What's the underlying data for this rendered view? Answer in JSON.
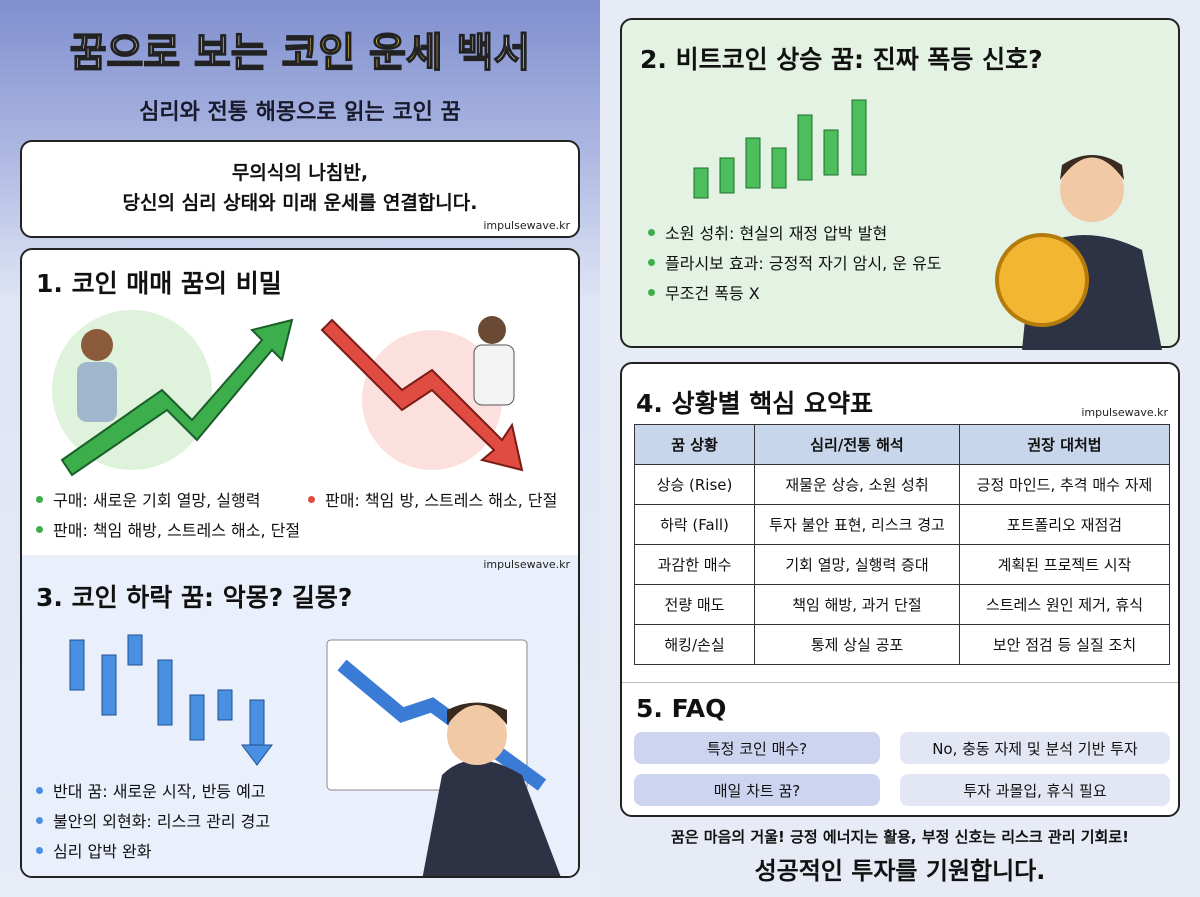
{
  "header": {
    "title_parts": [
      "꿈으로 보는",
      "코인 운세",
      "백서"
    ],
    "subtitle": "심리와 전통 해몽으로 읽는 코인 꿈"
  },
  "intro": {
    "lines": [
      "무의식의 나침반,",
      "당신의 심리 상태와 미래 운세를 연결합니다."
    ],
    "source": "impulsewave.kr"
  },
  "section1": {
    "title": "1. 코인 매매 꿈의 비밀",
    "bullets": [
      "구매: 새로운 기회 열망, 실행력",
      "판매: 책임 방, 스트레스 해소, 단절",
      "판매: 책임 해방, 스트레스 해소, 단절"
    ]
  },
  "section3": {
    "title": "3. 코인 하락 꿈: 악몽? 길몽?",
    "source": "impulsewave.kr",
    "bullets": [
      "반대 꿈: 새로운 시작, 반등 예고",
      "불안의 외현화: 리스크 관리 경고",
      "심리 압박 완화"
    ]
  },
  "section2": {
    "title": "2. 비트코인 상승 꿈: 진짜 폭등 신호?",
    "bullets": [
      "소원 성취: 현실의 재정 압박 발현",
      "플라시보 효과: 긍정적 자기 암시, 운 유도",
      "무조건 폭등 X"
    ]
  },
  "section4": {
    "title": "4. 상황별 핵심 요약표",
    "source": "impulsewave.kr",
    "table": {
      "header": [
        "꿈 상황",
        "심리/전통 해석",
        "권장 대처법"
      ],
      "rows": [
        [
          "상승 (Rise)",
          "재물운 상승, 소원 성취",
          "긍정 마인드, 추격 매수 자제"
        ],
        [
          "하락 (Fall)",
          "투자 불안 표현, 리스크 경고",
          "포트폴리오 재점검"
        ],
        [
          "과감한 매수",
          "기회 열망, 실행력 증대",
          "계획된 프로젝트 시작"
        ],
        [
          "전량 매도",
          "책임 해방, 과거 단절",
          "스트레스 원인 제거, 휴식"
        ],
        [
          "해킹/손실",
          "통제 상실 공포",
          "보안 점검 등 실질 조치"
        ]
      ]
    }
  },
  "section5": {
    "title": "5. FAQ",
    "faqs": [
      [
        "특정 코인 매수?",
        "No, 충동 자제 및 분석 기반 투자"
      ],
      [
        "매일 차트 꿈?",
        "투자 과몰입, 휴식 필요"
      ]
    ]
  },
  "footer": {
    "line1": "꿈은 마음의 거울! 긍정 에너지는 활용, 부정 신호는 리스크 관리 기회로!",
    "line2": "성공적인 투자를 기원합니다."
  }
}
